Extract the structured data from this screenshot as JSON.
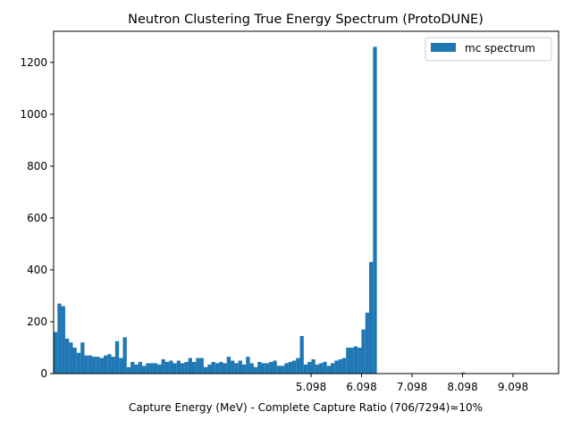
{
  "chart_data": {
    "type": "bar",
    "title": "Neutron Clustering True Energy Spectrum (ProtoDUNE)",
    "xlabel": "Capture Energy (MeV) - Complete Capture Ratio (706/7294)≈10%",
    "ylabel": "",
    "xlim": [
      0,
      10.0
    ],
    "ylim": [
      0,
      1320
    ],
    "x_ticks": [
      5.098,
      6.098,
      7.098,
      8.098,
      9.098
    ],
    "x_tick_labels": [
      "5.098",
      "6.098",
      "7.098",
      "8.098",
      "9.098"
    ],
    "y_ticks": [
      0,
      200,
      400,
      600,
      800,
      1000,
      1200
    ],
    "y_tick_labels": [
      "0",
      "200",
      "400",
      "600",
      "800",
      "1000",
      "1200"
    ],
    "grid": false,
    "legend_position": "top-right",
    "series": [
      {
        "name": "mc spectrum",
        "color": "#1f77b4",
        "bin_start": 0.0,
        "bin_width": 0.0762,
        "values": [
          160,
          270,
          260,
          135,
          120,
          100,
          80,
          120,
          70,
          70,
          65,
          65,
          60,
          70,
          75,
          65,
          125,
          60,
          140,
          25,
          45,
          35,
          45,
          30,
          40,
          40,
          40,
          35,
          55,
          45,
          50,
          40,
          50,
          40,
          45,
          60,
          45,
          60,
          60,
          25,
          35,
          45,
          40,
          45,
          40,
          65,
          50,
          40,
          50,
          35,
          65,
          40,
          25,
          45,
          40,
          40,
          45,
          50,
          30,
          30,
          40,
          45,
          50,
          60,
          145,
          35,
          45,
          55,
          35,
          40,
          45,
          30,
          40,
          50,
          55,
          60,
          100,
          100,
          105,
          100,
          170,
          235,
          430,
          1260,
          0,
          0,
          0,
          0,
          0,
          0,
          0,
          0,
          0,
          0,
          0,
          0,
          0,
          0,
          0,
          0,
          0,
          0,
          0,
          0,
          0,
          0,
          4
        ]
      }
    ]
  }
}
